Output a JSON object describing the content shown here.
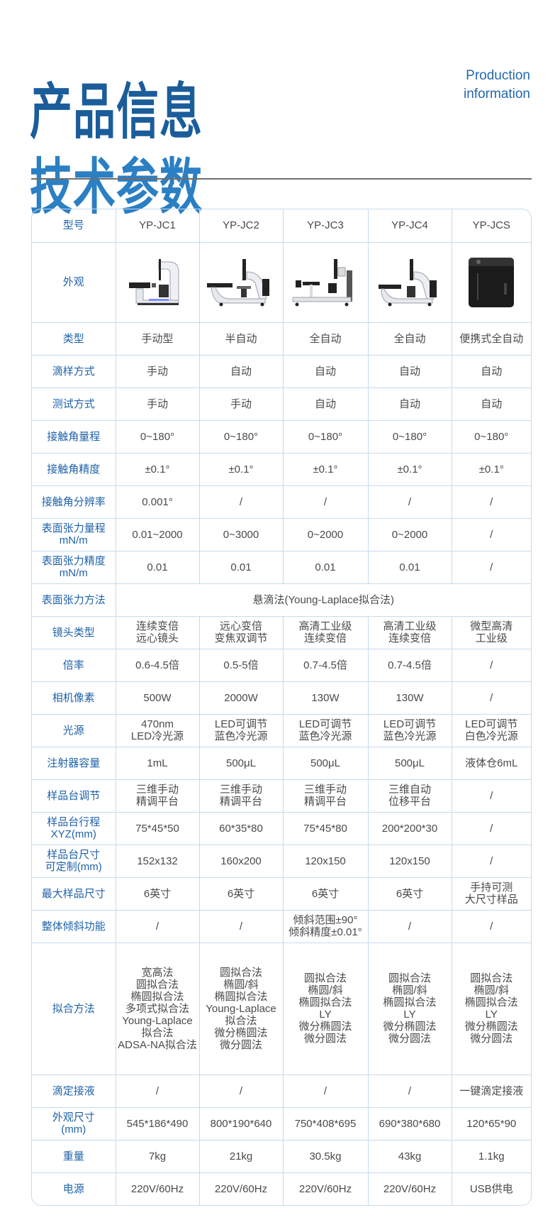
{
  "header": {
    "title_line1": "产品信息",
    "title_line2": "技术参数",
    "en_line1": "Production",
    "en_line2": "information"
  },
  "colors": {
    "accent": "#1f62a8",
    "border": "#c6dbee",
    "text": "#4a4a4a"
  },
  "table": {
    "header": {
      "label": "型号",
      "models": [
        "YP-JC1",
        "YP-JC2",
        "YP-JC3",
        "YP-JC4",
        "YP-JCS"
      ]
    },
    "appearance_label": "外观",
    "rows": [
      {
        "label": "类型",
        "values": [
          "手动型",
          "半自动",
          "全自动",
          "全自动",
          "便携式全自动"
        ]
      },
      {
        "label": "滴样方式",
        "values": [
          "手动",
          "自动",
          "自动",
          "自动",
          "自动"
        ]
      },
      {
        "label": "测试方式",
        "values": [
          "手动",
          "手动",
          "自动",
          "自动",
          "自动"
        ]
      },
      {
        "label": "接触角量程",
        "values": [
          "0~180°",
          "0~180°",
          "0~180°",
          "0~180°",
          "0~180°"
        ]
      },
      {
        "label": "接触角精度",
        "values": [
          "±0.1°",
          "±0.1°",
          "±0.1°",
          "±0.1°",
          "±0.1°"
        ]
      },
      {
        "label": "接触角分辨率",
        "values": [
          "0.001°",
          "/",
          "/",
          "/",
          "/"
        ]
      },
      {
        "label": "表面张力量程\nmN/m",
        "values": [
          "0.01~2000",
          "0~3000",
          "0~2000",
          "0~2000",
          "/"
        ]
      },
      {
        "label": "表面张力精度\nmN/m",
        "values": [
          "0.01",
          "0.01",
          "0.01",
          "0.01",
          "/"
        ]
      },
      {
        "label": "表面张力方法",
        "span": "悬滴法(Young-Laplace拟合法)"
      },
      {
        "label": "镜头类型",
        "values": [
          "连续变倍\n远心镜头",
          "远心变倍\n变焦双调节",
          "高清工业级\n连续变倍",
          "高清工业级\n连续变倍",
          "微型高清\n工业级"
        ]
      },
      {
        "label": "倍率",
        "values": [
          "0.6-4.5倍",
          "0.5-5倍",
          "0.7-4.5倍",
          "0.7-4.5倍",
          "/"
        ]
      },
      {
        "label": "相机像素",
        "values": [
          "500W",
          "2000W",
          "130W",
          "130W",
          "/"
        ]
      },
      {
        "label": "光源",
        "values": [
          "470nm\nLED冷光源",
          "LED可调节\n蓝色冷光源",
          "LED可调节\n蓝色冷光源",
          "LED可调节\n蓝色冷光源",
          "LED可调节\n白色冷光源"
        ]
      },
      {
        "label": "注射器容量",
        "values": [
          "1mL",
          "500μL",
          "500μL",
          "500μL",
          "液体仓6mL"
        ]
      },
      {
        "label": "样品台调节",
        "values": [
          "三维手动\n精调平台",
          "三维手动\n精调平台",
          "三维手动\n精调平台",
          "三维自动\n位移平台",
          "/"
        ]
      },
      {
        "label": "样品台行程\nXYZ(mm)",
        "values": [
          "75*45*50",
          "60*35*80",
          "75*45*80",
          "200*200*30",
          "/"
        ]
      },
      {
        "label": "样品台尺寸\n可定制(mm)",
        "values": [
          "152x132",
          "160x200",
          "120x150",
          "120x150",
          "/"
        ]
      },
      {
        "label": "最大样品尺寸",
        "values": [
          "6英寸",
          "6英寸",
          "6英寸",
          "6英寸",
          "手持可测\n大尺寸样品"
        ]
      },
      {
        "label": "整体倾斜功能",
        "values": [
          "/",
          "/",
          "倾斜范围±90°\n倾斜精度±0.01°",
          "/",
          "/"
        ]
      },
      {
        "label": "拟合方法",
        "fit": true,
        "values": [
          "宽高法\n圆拟合法\n椭圆拟合法\n多项式拟合法\nYoung-Laplace\n拟合法\nADSA-NA拟合法",
          "圆拟合法\n椭圆/斜\n椭圆拟合法\nYoung-Laplace\n拟合法\n微分椭圆法\n微分圆法",
          "圆拟合法\n椭圆/斜\n椭圆拟合法\nLY\n微分椭圆法\n微分圆法",
          "圆拟合法\n椭圆/斜\n椭圆拟合法\nLY\n微分椭圆法\n微分圆法",
          "圆拟合法\n椭圆/斜\n椭圆拟合法\nLY\n微分椭圆法\n微分圆法"
        ]
      },
      {
        "label": "滴定接液",
        "values": [
          "/",
          "/",
          "/",
          "/",
          "一键滴定接液"
        ]
      },
      {
        "label": "外观尺寸\n(mm)",
        "values": [
          "545*186*490",
          "800*190*640",
          "750*408*695",
          "690*380*680",
          "120*65*90"
        ]
      },
      {
        "label": "重量",
        "values": [
          "7kg",
          "21kg",
          "30.5kg",
          "43kg",
          "1.1kg"
        ]
      },
      {
        "label": "电源",
        "values": [
          "220V/60Hz",
          "220V/60Hz",
          "220V/60Hz",
          "220V/60Hz",
          "USB供电"
        ]
      }
    ]
  }
}
